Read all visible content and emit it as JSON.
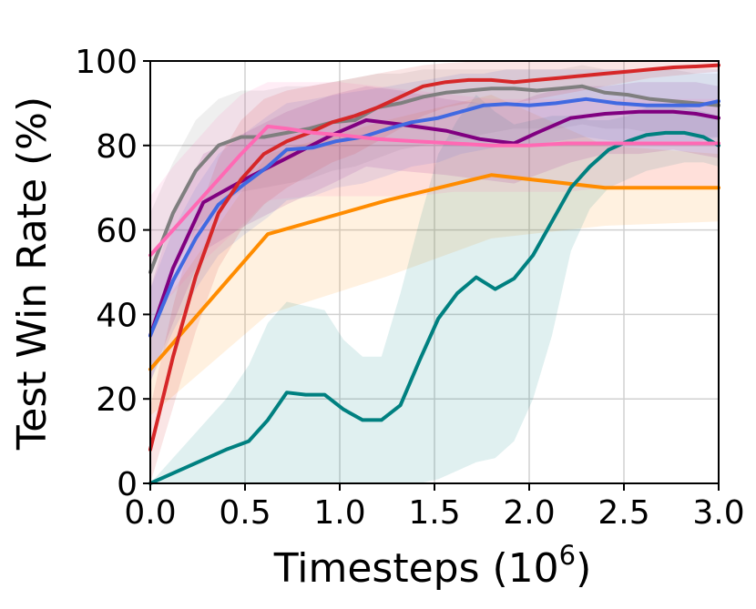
{
  "chart_data": {
    "type": "line",
    "title": "",
    "xlabel": "Timesteps (10",
    "xlabel_sup": "6",
    "xlabel_end": ")",
    "ylabel": "Test Win Rate (%)",
    "xlim": [
      0.0,
      3.0
    ],
    "ylim": [
      0,
      100
    ],
    "xticks": [
      "0.0",
      "0.5",
      "1.0",
      "1.5",
      "2.0",
      "2.5",
      "3.0"
    ],
    "yticks": [
      "0",
      "20",
      "40",
      "60",
      "80",
      "100"
    ],
    "grid": true,
    "legend": "none",
    "series": [
      {
        "color": "#ff8c00",
        "x": [
          0.0,
          0.62,
          1.25,
          1.8,
          2.4,
          3.0
        ],
        "y": [
          27,
          59,
          67,
          73,
          70,
          70
        ],
        "lower": [
          16,
          40,
          49,
          58,
          61,
          62
        ],
        "upper": [
          38,
          78,
          86,
          92,
          80,
          78
        ]
      },
      {
        "color": "#008080",
        "x": [
          0.0,
          0.1,
          0.2,
          0.3,
          0.4,
          0.52,
          0.62,
          0.72,
          0.82,
          0.92,
          1.02,
          1.12,
          1.22,
          1.32,
          1.42,
          1.52,
          1.62,
          1.72,
          1.82,
          1.92,
          2.02,
          2.12,
          2.22,
          2.32,
          2.42,
          2.52,
          2.62,
          2.72,
          2.82,
          2.92,
          3.0
        ],
        "y": [
          0,
          2,
          4,
          6,
          8,
          10,
          15,
          21.5,
          21,
          21,
          17.5,
          15,
          15,
          18.5,
          29,
          39,
          45,
          48.8,
          46,
          48.5,
          54,
          62,
          70,
          75,
          79,
          81,
          82.5,
          83,
          83,
          82,
          80
        ],
        "lower": [
          0,
          0,
          0,
          0,
          0,
          0,
          0,
          0,
          0,
          0,
          0,
          0,
          0,
          0,
          0,
          1,
          3,
          5,
          6,
          10,
          20,
          35,
          55,
          65,
          70,
          72,
          74,
          75,
          76,
          76,
          75
        ],
        "upper": [
          0,
          5,
          10,
          15,
          20,
          28,
          38,
          43,
          42,
          41,
          34,
          30,
          30,
          45,
          62,
          78,
          86,
          92,
          88,
          85,
          86,
          87,
          87,
          86,
          86,
          87,
          89,
          89,
          89,
          88,
          87
        ]
      },
      {
        "color": "#7f7f7f",
        "x": [
          0.0,
          0.12,
          0.24,
          0.36,
          0.48,
          0.6,
          0.72,
          0.84,
          0.96,
          1.08,
          1.2,
          1.32,
          1.44,
          1.56,
          1.68,
          1.8,
          1.92,
          2.04,
          2.16,
          2.28,
          2.4,
          2.52,
          2.64,
          2.76,
          2.88,
          3.0
        ],
        "y": [
          50,
          64,
          74,
          80,
          82,
          82,
          83,
          84,
          85.5,
          86,
          89,
          90,
          91.5,
          92.5,
          93,
          93.5,
          93.5,
          93,
          93.5,
          94,
          92.5,
          92,
          91,
          90.5,
          90,
          89.5
        ],
        "lower": [
          36,
          50,
          60,
          66,
          69,
          70,
          71,
          72,
          74,
          75,
          77,
          79,
          80,
          81,
          82,
          83,
          84,
          84,
          84,
          85,
          84,
          84,
          83,
          83,
          82,
          82
        ],
        "upper": [
          64,
          76,
          86,
          91,
          93,
          93,
          94,
          94,
          95,
          96,
          97,
          97,
          98,
          98,
          98,
          98,
          98,
          98,
          98,
          99,
          98,
          98,
          98,
          98,
          97,
          97
        ]
      },
      {
        "color": "#800080",
        "x": [
          0.0,
          0.12,
          0.28,
          0.5,
          0.72,
          0.96,
          1.14,
          1.32,
          1.56,
          1.74,
          1.92,
          2.04,
          2.22,
          2.4,
          2.58,
          2.76,
          2.88,
          3.0
        ],
        "y": [
          35,
          51,
          66.5,
          72,
          77,
          82.5,
          86,
          85,
          83.5,
          81.5,
          80.5,
          83,
          86.5,
          87.5,
          88,
          88,
          87.5,
          86.5
        ],
        "lower": [
          24,
          38,
          55,
          61,
          66,
          71,
          75,
          74,
          73,
          72,
          71,
          73,
          76,
          78,
          78,
          79,
          78,
          77
        ],
        "upper": [
          46,
          64,
          78,
          83,
          88,
          92,
          94,
          93,
          91,
          90,
          90,
          92,
          94,
          94,
          95,
          95,
          95,
          94
        ]
      },
      {
        "color": "#4169e1",
        "x": [
          0.0,
          0.12,
          0.24,
          0.36,
          0.5,
          0.62,
          0.72,
          0.86,
          0.98,
          1.12,
          1.26,
          1.38,
          1.52,
          1.64,
          1.76,
          1.88,
          2.0,
          2.14,
          2.3,
          2.46,
          2.62,
          2.76,
          2.9,
          3.0
        ],
        "y": [
          35,
          48,
          58,
          66,
          71,
          75,
          79,
          79.5,
          81,
          82,
          84,
          85.5,
          86.5,
          88,
          89.5,
          89.8,
          89.5,
          90,
          91,
          90,
          89.5,
          89.5,
          89.5,
          90.5
        ],
        "lower": [
          24,
          36,
          46,
          54,
          59,
          63,
          67,
          68,
          70,
          71,
          73,
          75,
          76,
          78,
          79,
          80,
          80,
          81,
          82,
          81,
          81,
          81,
          81,
          82
        ],
        "upper": [
          46,
          60,
          70,
          78,
          83,
          87,
          90,
          91,
          92,
          93,
          94,
          95,
          96,
          97,
          97,
          98,
          98,
          98,
          98,
          98,
          98,
          98,
          98,
          98
        ]
      },
      {
        "color": "#d62728",
        "x": [
          0.0,
          0.12,
          0.24,
          0.36,
          0.48,
          0.6,
          0.72,
          0.84,
          0.96,
          1.08,
          1.2,
          1.32,
          1.44,
          1.56,
          1.68,
          1.8,
          1.92,
          2.04,
          2.16,
          2.28,
          2.4,
          2.52,
          2.64,
          2.76,
          2.88,
          3.0
        ],
        "y": [
          8,
          30,
          49,
          64,
          72,
          78,
          81,
          83,
          85.5,
          87,
          89,
          91.5,
          94,
          95,
          95.5,
          95.5,
          95,
          95.5,
          96,
          96.5,
          97,
          97.5,
          98,
          98.5,
          98.7,
          99
        ],
        "lower": [
          0,
          18,
          36,
          51,
          60,
          66,
          70,
          73,
          76,
          78,
          81,
          84,
          87,
          89,
          90,
          90,
          90,
          91,
          92,
          93,
          94,
          95,
          96,
          96.5,
          97,
          97.5
        ],
        "upper": [
          18,
          42,
          62,
          77,
          86,
          91,
          93,
          94,
          95,
          96,
          97,
          98,
          99,
          99.5,
          99.8,
          100,
          100,
          100,
          100,
          100,
          100,
          100,
          100,
          100,
          100,
          100
        ]
      },
      {
        "color": "#ff69b4",
        "x": [
          0.0,
          0.12,
          0.24,
          0.36,
          0.48,
          0.62,
          0.72,
          0.86,
          1.0,
          1.2,
          1.4,
          1.6,
          1.8,
          2.0,
          2.2,
          2.4,
          2.6,
          2.8,
          3.0
        ],
        "y": [
          54,
          60,
          66,
          72,
          78,
          84.5,
          84,
          83,
          82.5,
          81.5,
          81,
          80.5,
          80,
          80,
          80.5,
          80.5,
          80.5,
          80.5,
          80.5
        ],
        "lower": [
          40,
          45,
          51,
          56,
          61,
          67,
          67.5,
          68,
          68,
          68,
          68,
          69,
          69,
          69,
          69,
          70,
          70,
          70,
          70
        ],
        "upper": [
          68,
          75,
          81,
          87,
          92,
          95,
          95,
          95,
          95,
          94,
          93,
          92,
          91,
          91,
          91,
          91,
          91,
          91,
          91
        ]
      }
    ]
  }
}
